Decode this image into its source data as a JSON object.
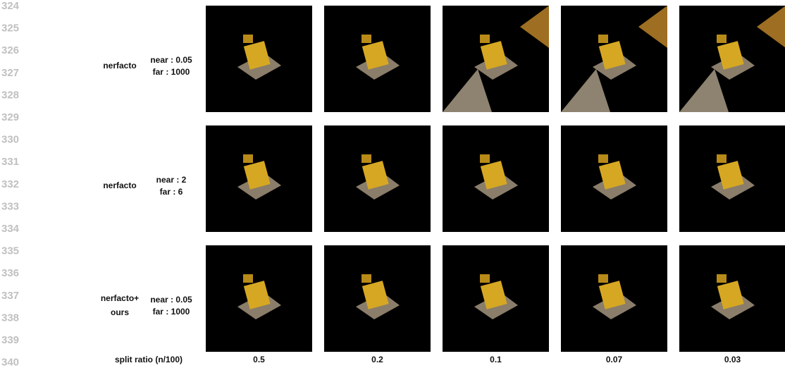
{
  "line_numbers": [
    324,
    325,
    326,
    327,
    328,
    329,
    330,
    331,
    332,
    333,
    334,
    335,
    336,
    337,
    338,
    339,
    340
  ],
  "rows": [
    {
      "method": [
        "nerfacto"
      ],
      "near": "near : 0.05",
      "far": "far : 1000"
    },
    {
      "method": [
        "nerfacto"
      ],
      "near": "near : 2",
      "far": "far : 6"
    },
    {
      "method": [
        "nerfacto+",
        "ours"
      ],
      "near": "near : 0.05",
      "far": "far : 1000"
    }
  ],
  "columns": {
    "label": "split ratio (n/100)",
    "ticks": [
      "0.5",
      "0.2",
      "0.1",
      "0.07",
      "0.03"
    ]
  }
}
